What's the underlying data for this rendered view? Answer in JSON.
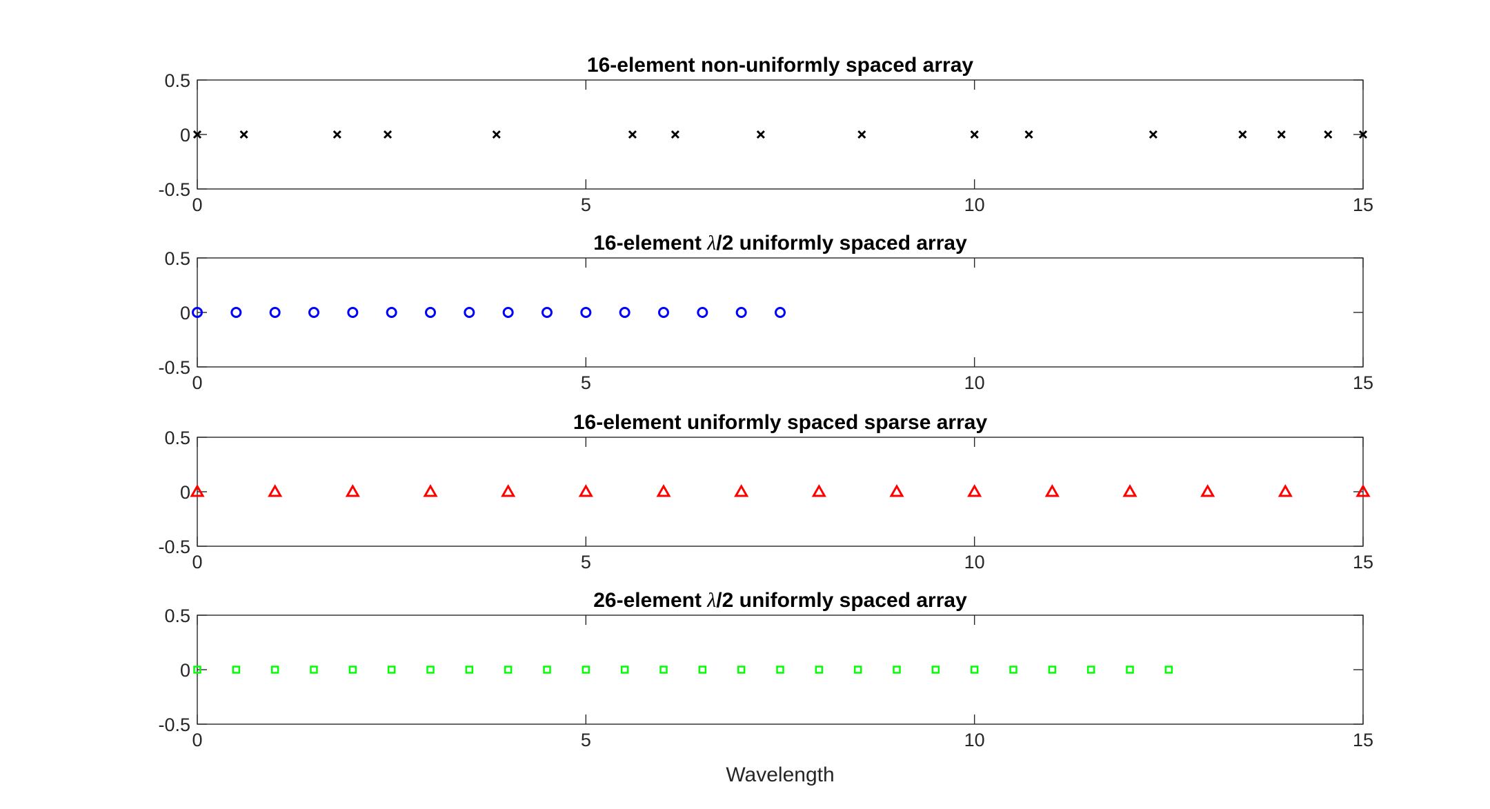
{
  "figure": {
    "xlabel": "Wavelength"
  },
  "chart_data": [
    {
      "type": "scatter",
      "title": "16-element non-uniformly spaced array",
      "title_parts": {
        "before": "16-element non-uniformly spaced array",
        "lambda": "",
        "after": ""
      },
      "marker": "x",
      "color": "#000000",
      "xlim": [
        0,
        15
      ],
      "ylim": [
        -0.5,
        0.5
      ],
      "xticks": [
        0,
        5,
        10,
        15
      ],
      "yticks": [
        0.5,
        0,
        -0.5
      ],
      "xtick_labels": [
        "0",
        "5",
        "10",
        "15"
      ],
      "ytick_labels": [
        "0.5",
        "0",
        "-0.5"
      ],
      "x": [
        0,
        0.6,
        1.8,
        2.45,
        3.85,
        5.6,
        6.15,
        7.25,
        8.55,
        10.0,
        10.7,
        12.3,
        13.45,
        13.95,
        14.55,
        15.0
      ],
      "y": [
        0,
        0,
        0,
        0,
        0,
        0,
        0,
        0,
        0,
        0,
        0,
        0,
        0,
        0,
        0,
        0
      ]
    },
    {
      "type": "scatter",
      "title": "16-element λ/2 uniformly spaced array",
      "title_parts": {
        "before": "16-element ",
        "lambda": "λ",
        "after": "/2 uniformly spaced array"
      },
      "marker": "o",
      "color": "#0000ff",
      "xlim": [
        0,
        15
      ],
      "ylim": [
        -0.5,
        0.5
      ],
      "xticks": [
        0,
        5,
        10,
        15
      ],
      "yticks": [
        0.5,
        0,
        -0.5
      ],
      "xtick_labels": [
        "0",
        "5",
        "10",
        "15"
      ],
      "ytick_labels": [
        "0.5",
        "0",
        "-0.5"
      ],
      "x": [
        0,
        0.5,
        1,
        1.5,
        2,
        2.5,
        3,
        3.5,
        4,
        4.5,
        5,
        5.5,
        6,
        6.5,
        7,
        7.5
      ],
      "y": [
        0,
        0,
        0,
        0,
        0,
        0,
        0,
        0,
        0,
        0,
        0,
        0,
        0,
        0,
        0,
        0
      ]
    },
    {
      "type": "scatter",
      "title": "16-element uniformly spaced sparse array",
      "title_parts": {
        "before": "16-element uniformly spaced sparse array",
        "lambda": "",
        "after": ""
      },
      "marker": "triangle",
      "color": "#ff0000",
      "xlim": [
        0,
        15
      ],
      "ylim": [
        -0.5,
        0.5
      ],
      "xticks": [
        0,
        5,
        10,
        15
      ],
      "yticks": [
        0.5,
        0,
        -0.5
      ],
      "xtick_labels": [
        "0",
        "5",
        "10",
        "15"
      ],
      "ytick_labels": [
        "0.5",
        "0",
        "-0.5"
      ],
      "x": [
        0,
        1,
        2,
        3,
        4,
        5,
        6,
        7,
        8,
        9,
        10,
        11,
        12,
        13,
        14,
        15
      ],
      "y": [
        0,
        0,
        0,
        0,
        0,
        0,
        0,
        0,
        0,
        0,
        0,
        0,
        0,
        0,
        0,
        0
      ]
    },
    {
      "type": "scatter",
      "title": "26-element λ/2 uniformly spaced array",
      "title_parts": {
        "before": "26-element ",
        "lambda": "λ",
        "after": "/2 uniformly spaced array"
      },
      "marker": "square",
      "color": "#00ff00",
      "xlim": [
        0,
        15
      ],
      "ylim": [
        -0.5,
        0.5
      ],
      "xticks": [
        0,
        5,
        10,
        15
      ],
      "yticks": [
        0.5,
        0,
        -0.5
      ],
      "xtick_labels": [
        "0",
        "5",
        "10",
        "15"
      ],
      "ytick_labels": [
        "0.5",
        "0",
        "-0.5"
      ],
      "x": [
        0,
        0.5,
        1,
        1.5,
        2,
        2.5,
        3,
        3.5,
        4,
        4.5,
        5,
        5.5,
        6,
        6.5,
        7,
        7.5,
        8,
        8.5,
        9,
        9.5,
        10,
        10.5,
        11,
        11.5,
        12,
        12.5
      ],
      "y": [
        0,
        0,
        0,
        0,
        0,
        0,
        0,
        0,
        0,
        0,
        0,
        0,
        0,
        0,
        0,
        0,
        0,
        0,
        0,
        0,
        0,
        0,
        0,
        0,
        0,
        0
      ]
    }
  ]
}
